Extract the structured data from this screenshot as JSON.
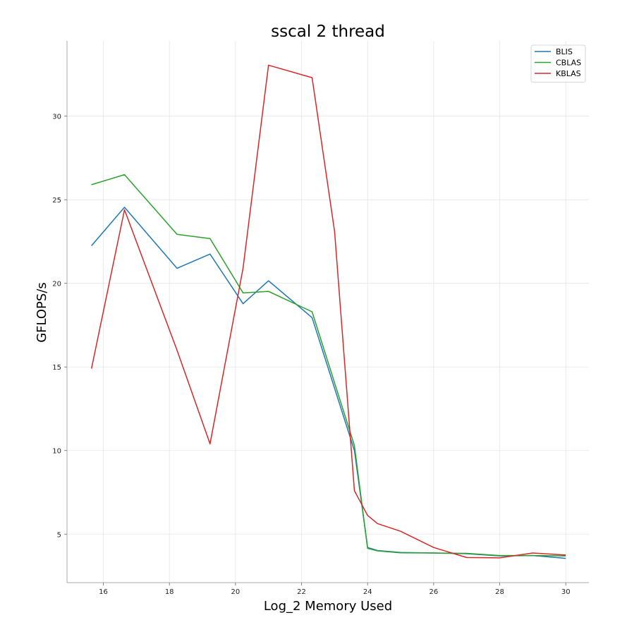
{
  "chart_data": {
    "type": "line",
    "title": "sscal 2 thread",
    "xlabel": "Log_2 Memory Used",
    "ylabel": "GFLOPS/s",
    "xlim": [
      14.9,
      30.7
    ],
    "ylim": [
      2.1,
      34.5
    ],
    "xticks": [
      16,
      18,
      20,
      22,
      24,
      26,
      28,
      30
    ],
    "yticks": [
      5,
      10,
      15,
      20,
      25,
      30
    ],
    "grid": true,
    "legend_position": "top-right",
    "series": [
      {
        "name": "BLIS",
        "color": "#1f77b4",
        "x": [
          15.64,
          16.64,
          18.23,
          19.23,
          20.23,
          21.0,
          22.32,
          23.6,
          24.0,
          24.3,
          25.0,
          26.0,
          27.0,
          28.0,
          29.0,
          30.0
        ],
        "y": [
          22.25,
          24.55,
          20.9,
          21.75,
          18.78,
          20.15,
          17.95,
          10.0,
          4.2,
          4.02,
          3.9,
          3.87,
          3.83,
          3.7,
          3.72,
          3.55
        ]
      },
      {
        "name": "CBLAS",
        "color": "#2ca02c",
        "x": [
          15.64,
          16.64,
          18.23,
          19.23,
          20.23,
          21.0,
          22.32,
          23.6,
          24.0,
          24.3,
          25.0,
          26.0,
          27.0,
          28.0,
          29.0,
          30.0
        ],
        "y": [
          25.9,
          26.5,
          22.93,
          22.68,
          19.43,
          19.52,
          18.3,
          10.3,
          4.15,
          4.0,
          3.88,
          3.87,
          3.85,
          3.72,
          3.72,
          3.7
        ]
      },
      {
        "name": "KBLAS",
        "color": "#d62728",
        "x": [
          15.64,
          16.64,
          18.23,
          19.23,
          20.23,
          21.0,
          22.32,
          23.0,
          23.6,
          24.0,
          24.3,
          25.0,
          26.0,
          27.0,
          28.0,
          29.0,
          30.0
        ],
        "y": [
          14.9,
          24.4,
          16.0,
          10.4,
          20.9,
          33.05,
          32.3,
          23.1,
          7.6,
          6.12,
          5.63,
          5.17,
          4.2,
          3.6,
          3.58,
          3.87,
          3.75
        ]
      }
    ]
  }
}
